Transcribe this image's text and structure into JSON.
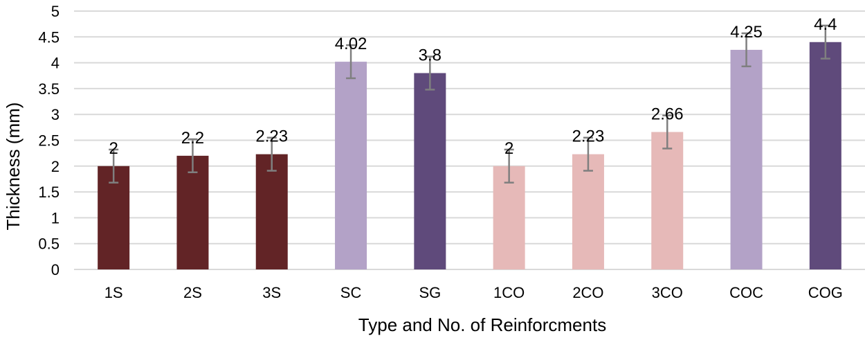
{
  "chart_data": {
    "type": "bar",
    "title": "",
    "xlabel": "Type and No. of Reinforcments",
    "ylabel": "Thickness (mm)",
    "ylim": [
      0,
      5
    ],
    "yticks": [
      "0",
      "0.5",
      "1",
      "1.5",
      "2",
      "2.5",
      "3",
      "3.5",
      "4",
      "4.5",
      "5"
    ],
    "grid": true,
    "legend": "none",
    "categories": [
      "1S",
      "2S",
      "3S",
      "SC",
      "SG",
      "1CO",
      "2CO",
      "3CO",
      "COC",
      "COG"
    ],
    "values": [
      2,
      2.2,
      2.23,
      4.02,
      3.8,
      2,
      2.23,
      2.66,
      4.25,
      4.4
    ],
    "data_labels": [
      "2",
      "2.2",
      "2.23",
      "4.02",
      "3.8",
      "2",
      "2.23",
      "2.66",
      "4.25",
      "4.4"
    ],
    "error": [
      0.32,
      0.32,
      0.32,
      0.32,
      0.32,
      0.32,
      0.32,
      0.32,
      0.32,
      0.32
    ],
    "colors": [
      "#622426",
      "#622426",
      "#622426",
      "#b3a2c7",
      "#5f4a7b",
      "#e6b9b8",
      "#e6b9b8",
      "#e6b9b8",
      "#b3a2c7",
      "#5f4a7b"
    ],
    "gridline_color": "#d9d9d9",
    "errorbar_color": "#7f7f7f"
  }
}
